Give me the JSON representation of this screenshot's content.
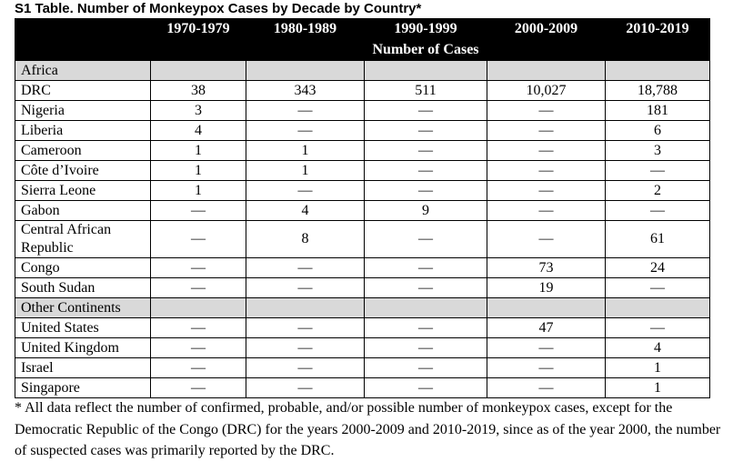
{
  "title": "S1 Table. Number of Monkeypox Cases by Decade by Country*",
  "header": {
    "columns": [
      "1970-1979",
      "1980-1989",
      "1990-1999",
      "2000-2009",
      "2010-2019"
    ],
    "span_label": "Number of Cases"
  },
  "sections": [
    {
      "label": "Africa",
      "rows": [
        {
          "country": "DRC",
          "cells": [
            "38",
            "343",
            "511",
            "10,027",
            "18,788"
          ]
        },
        {
          "country": "Nigeria",
          "cells": [
            "3",
            "—",
            "—",
            "—",
            "181"
          ]
        },
        {
          "country": "Liberia",
          "cells": [
            "4",
            "—",
            "—",
            "—",
            "6"
          ]
        },
        {
          "country": "Cameroon",
          "cells": [
            "1",
            "1",
            "—",
            "—",
            "3"
          ]
        },
        {
          "country": "Côte d’Ivoire",
          "cells": [
            "1",
            "1",
            "—",
            "—",
            "—"
          ]
        },
        {
          "country": "Sierra Leone",
          "cells": [
            "1",
            "—",
            "—",
            "—",
            "2"
          ]
        },
        {
          "country": "Gabon",
          "cells": [
            "—",
            "4",
            "9",
            "—",
            "—"
          ]
        },
        {
          "country": "Central African Republic",
          "cells": [
            "—",
            "8",
            "—",
            "—",
            "61"
          ]
        },
        {
          "country": "Congo",
          "cells": [
            "—",
            "—",
            "—",
            "73",
            "24"
          ]
        },
        {
          "country": "South Sudan",
          "cells": [
            "—",
            "—",
            "—",
            "19",
            "—"
          ]
        }
      ]
    },
    {
      "label": "Other Continents",
      "rows": [
        {
          "country": "United States",
          "cells": [
            "—",
            "—",
            "—",
            "47",
            "—"
          ]
        },
        {
          "country": "United Kingdom",
          "cells": [
            "—",
            "—",
            "—",
            "—",
            "4"
          ]
        },
        {
          "country": "Israel",
          "cells": [
            "—",
            "—",
            "—",
            "—",
            "1"
          ]
        },
        {
          "country": "Singapore",
          "cells": [
            "—",
            "—",
            "—",
            "—",
            "1"
          ]
        }
      ]
    }
  ],
  "footnote": "* All data reflect the number of confirmed, probable, and/or possible number of monkeypox cases, except for the Democratic Republic of the Congo (DRC) for the years 2000-2009 and 2010-2019, since as of the year 2000, the number of suspected cases was primarily reported by the DRC."
}
